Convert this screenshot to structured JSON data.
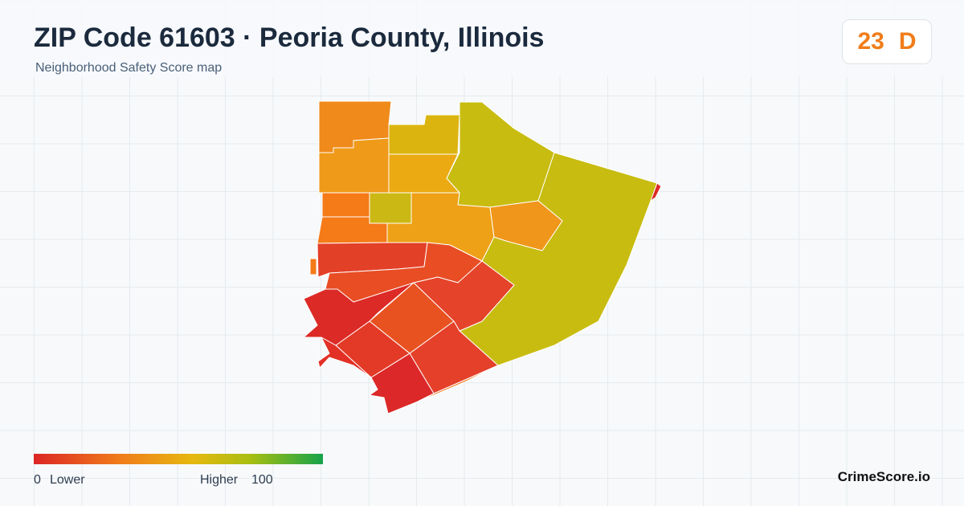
{
  "header": {
    "title": "ZIP Code 61603 · Peoria County, Illinois",
    "subtitle": "Neighborhood Safety Score map"
  },
  "badge": {
    "score": "23",
    "grade": "D"
  },
  "legend": {
    "min": "0",
    "min_label": "Lower",
    "max_label": "Higher",
    "max": "100"
  },
  "brand": "CrimeScore.io"
}
